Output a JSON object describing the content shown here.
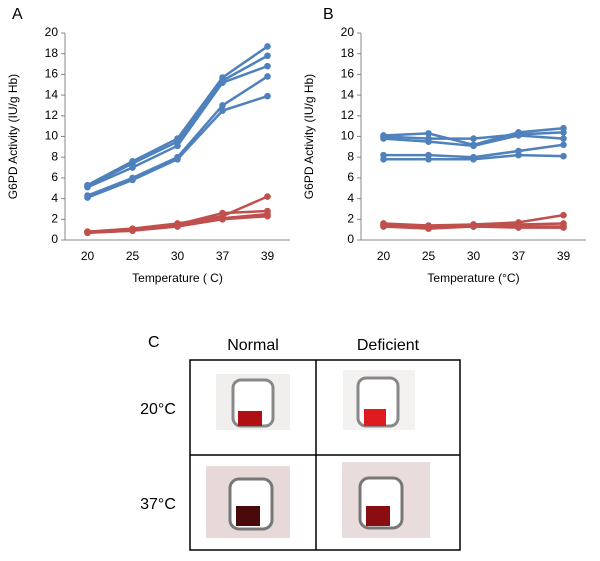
{
  "chart_data": [
    {
      "type": "line",
      "panel_label": "A",
      "xlabel": "Temperature ( C)",
      "ylabel": "G6PD Activity (IU/g Hb)",
      "categories": [
        "20",
        "25",
        "30",
        "37",
        "39"
      ],
      "ylim": [
        0,
        20
      ],
      "yticks": [
        0,
        2,
        4,
        6,
        8,
        10,
        12,
        14,
        16,
        18,
        20
      ],
      "series": [
        {
          "color": "#4f81bd",
          "values": [
            5.3,
            7.6,
            9.8,
            15.7,
            18.7
          ]
        },
        {
          "color": "#4f81bd",
          "values": [
            5.2,
            7.4,
            9.5,
            15.4,
            17.8
          ]
        },
        {
          "color": "#4f81bd",
          "values": [
            5.1,
            7.0,
            9.1,
            15.2,
            16.8
          ]
        },
        {
          "color": "#4f81bd",
          "values": [
            4.3,
            6.0,
            8.0,
            13.0,
            15.8
          ]
        },
        {
          "color": "#4f81bd",
          "values": [
            4.1,
            5.8,
            7.8,
            12.5,
            13.9
          ]
        },
        {
          "color": "#c0504d",
          "values": [
            0.8,
            1.1,
            1.6,
            2.3,
            4.2
          ]
        },
        {
          "color": "#c0504d",
          "values": [
            0.8,
            1.0,
            1.5,
            2.6,
            2.8
          ]
        },
        {
          "color": "#c0504d",
          "values": [
            0.7,
            0.9,
            1.4,
            2.1,
            2.5
          ]
        },
        {
          "color": "#c0504d",
          "values": [
            0.7,
            0.9,
            1.3,
            2.0,
            2.3
          ]
        }
      ]
    },
    {
      "type": "line",
      "panel_label": "B",
      "xlabel": "Temperature (°C)",
      "ylabel": "G6PD Activity (IU/g Hb)",
      "categories": [
        "20",
        "25",
        "30",
        "37",
        "39"
      ],
      "ylim": [
        0,
        20
      ],
      "yticks": [
        0,
        2,
        4,
        6,
        8,
        10,
        12,
        14,
        16,
        18,
        20
      ],
      "series": [
        {
          "color": "#4f81bd",
          "values": [
            10.1,
            10.3,
            9.2,
            10.4,
            10.8
          ]
        },
        {
          "color": "#4f81bd",
          "values": [
            10.0,
            9.8,
            9.8,
            10.2,
            10.4
          ]
        },
        {
          "color": "#4f81bd",
          "values": [
            9.8,
            9.5,
            9.1,
            10.1,
            9.8
          ]
        },
        {
          "color": "#4f81bd",
          "values": [
            8.2,
            8.2,
            8.0,
            8.6,
            9.2
          ]
        },
        {
          "color": "#4f81bd",
          "values": [
            7.8,
            7.8,
            7.8,
            8.2,
            8.1
          ]
        },
        {
          "color": "#c0504d",
          "values": [
            1.6,
            1.4,
            1.5,
            1.7,
            2.4
          ]
        },
        {
          "color": "#c0504d",
          "values": [
            1.5,
            1.3,
            1.4,
            1.5,
            1.6
          ]
        },
        {
          "color": "#c0504d",
          "values": [
            1.4,
            1.2,
            1.3,
            1.3,
            1.3
          ]
        },
        {
          "color": "#c0504d",
          "values": [
            1.3,
            1.1,
            1.3,
            1.2,
            1.2
          ]
        }
      ]
    }
  ],
  "panel_c": {
    "label": "C",
    "columns": [
      "Normal",
      "Deficient"
    ],
    "rows": [
      "20°C",
      "37°C"
    ]
  }
}
